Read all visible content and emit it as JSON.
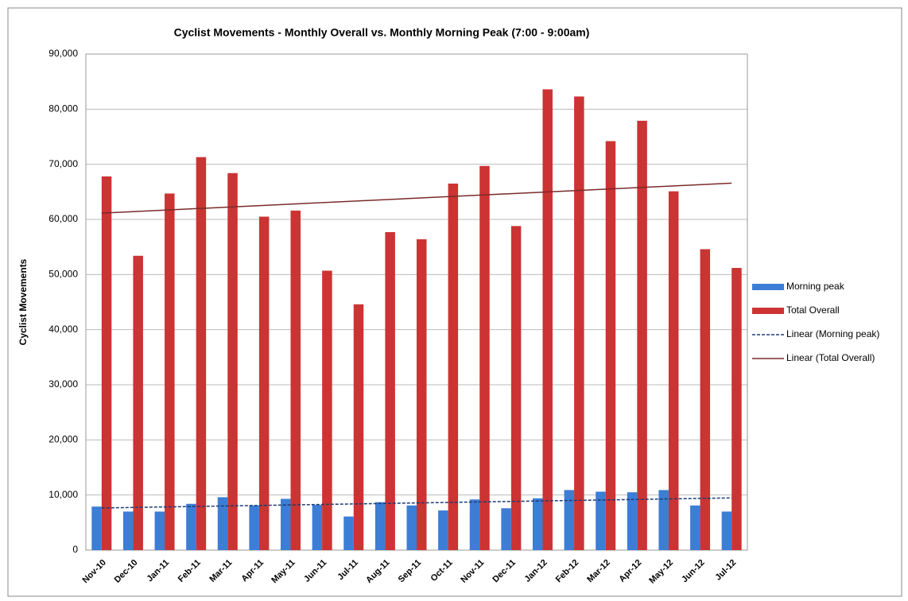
{
  "chart_data": {
    "type": "bar",
    "title": "Cyclist Movements - Monthly Overall vs. Monthly Morning  Peak (7:00 - 9:00am)",
    "y_label": "Cyclist Movements",
    "categories": [
      "Nov-10",
      "Dec-10",
      "Jan-11",
      "Feb-11",
      "Mar-11",
      "Apr-11",
      "May-11",
      "Jun-11",
      "Jul-11",
      "Aug-11",
      "Sep-11",
      "Oct-11",
      "Nov-11",
      "Dec-11",
      "Jan-12",
      "Feb-12",
      "Mar-12",
      "Apr-12",
      "May-12",
      "Jun-12",
      "Jul-12"
    ],
    "series": [
      {
        "name": "Morning peak",
        "color": "#3c7dd6",
        "values": [
          7900,
          7000,
          7000,
          8400,
          9600,
          8100,
          9300,
          8200,
          6100,
          8700,
          8100,
          7200,
          9200,
          7600,
          9400,
          10900,
          10600,
          10500,
          10900,
          8100,
          7000
        ]
      },
      {
        "name": "Total Overall",
        "color": "#cc3333",
        "values": [
          67800,
          53400,
          64700,
          71300,
          68400,
          60500,
          61600,
          50700,
          44600,
          57700,
          56400,
          66500,
          69700,
          58800,
          83600,
          82300,
          74200,
          77900,
          65100,
          54600,
          51200
        ]
      }
    ],
    "trendlines": [
      {
        "name": "Linear (Morning peak)",
        "series": 0,
        "color": "#1f3b73",
        "dashed": true
      },
      {
        "name": "Linear (Total Overall)",
        "series": 1,
        "color": "#7a2a2a",
        "dashed": false
      }
    ],
    "ylim": [
      0,
      90000
    ],
    "yticks": [
      0,
      {
        "value": 10000,
        "label": "10,000"
      },
      {
        "value": 20000,
        "label": "20,000"
      },
      {
        "value": 30000,
        "label": "30,000"
      },
      {
        "value": 40000,
        "label": "40,000"
      },
      {
        "value": 50000,
        "label": "50,000"
      },
      {
        "value": 60000,
        "label": "60,000"
      },
      {
        "value": 70000,
        "label": "70,000"
      },
      {
        "value": 80000,
        "label": "80,000"
      },
      {
        "value": 90000,
        "label": "90,000"
      }
    ],
    "grid": true,
    "legend": "right"
  }
}
